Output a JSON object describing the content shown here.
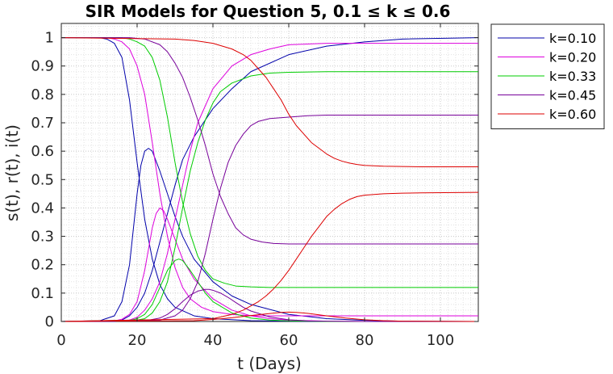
{
  "chart_data": {
    "type": "line",
    "title": "SIR Models for Question 5, 0.1 ≤ k ≤ 0.6",
    "xlabel": "t (Days)",
    "ylabel": "s(t), r(t), i(t)",
    "xlim": [
      0,
      110
    ],
    "ylim": [
      0,
      1.05
    ],
    "xticks": [
      0,
      20,
      40,
      60,
      80,
      100
    ],
    "yticks": [
      0,
      0.1,
      0.2,
      0.3,
      0.4,
      0.5,
      0.6,
      0.7,
      0.8,
      0.9,
      1
    ],
    "grid": "major and minor, dotted",
    "legend_placement": "outside-top-right",
    "series": [
      {
        "name": "k=0.10",
        "color": "#0000aa",
        "s": {
          "x": [
            0,
            10,
            12,
            14,
            16,
            18,
            20,
            22,
            24,
            26,
            28,
            30,
            35,
            40,
            50,
            60,
            70,
            80,
            90,
            110
          ],
          "y": [
            1,
            1,
            0.995,
            0.98,
            0.93,
            0.78,
            0.56,
            0.36,
            0.22,
            0.13,
            0.08,
            0.05,
            0.02,
            0.01,
            0.003,
            0.001,
            0,
            0,
            0,
            0
          ]
        },
        "i": {
          "x": [
            0,
            10,
            14,
            16,
            18,
            20,
            21,
            22,
            23,
            24,
            26,
            28,
            30,
            32,
            35,
            40,
            45,
            50,
            60,
            70,
            80,
            90,
            110
          ],
          "y": [
            0,
            0.002,
            0.02,
            0.07,
            0.2,
            0.45,
            0.55,
            0.6,
            0.61,
            0.6,
            0.53,
            0.45,
            0.37,
            0.3,
            0.22,
            0.14,
            0.09,
            0.06,
            0.025,
            0.01,
            0.004,
            0.001,
            0
          ]
        },
        "r": {
          "x": [
            0,
            14,
            16,
            18,
            20,
            22,
            24,
            26,
            28,
            30,
            32,
            35,
            40,
            45,
            50,
            60,
            70,
            80,
            90,
            110
          ],
          "y": [
            0,
            0,
            0.005,
            0.02,
            0.05,
            0.1,
            0.18,
            0.28,
            0.38,
            0.48,
            0.57,
            0.65,
            0.75,
            0.82,
            0.88,
            0.94,
            0.97,
            0.985,
            0.995,
            1
          ]
        }
      },
      {
        "name": "k=0.20",
        "color": "#dd00dd",
        "s": {
          "x": [
            0,
            12,
            14,
            16,
            18,
            20,
            22,
            24,
            26,
            28,
            30,
            32,
            34,
            37,
            40,
            45,
            50,
            60,
            80,
            110
          ],
          "y": [
            1,
            1,
            0.995,
            0.985,
            0.96,
            0.9,
            0.8,
            0.63,
            0.45,
            0.3,
            0.19,
            0.12,
            0.08,
            0.05,
            0.035,
            0.025,
            0.02,
            0.02,
            0.02,
            0.02
          ]
        },
        "i": {
          "x": [
            0,
            14,
            16,
            18,
            20,
            22,
            24,
            25,
            26,
            27,
            28,
            30,
            32,
            35,
            40,
            45,
            50,
            55,
            60,
            70,
            80,
            90,
            110
          ],
          "y": [
            0,
            0.002,
            0.008,
            0.025,
            0.07,
            0.18,
            0.33,
            0.38,
            0.4,
            0.39,
            0.36,
            0.29,
            0.22,
            0.15,
            0.08,
            0.04,
            0.02,
            0.01,
            0.005,
            0.001,
            0,
            0,
            0
          ]
        },
        "r": {
          "x": [
            0,
            18,
            20,
            22,
            24,
            26,
            28,
            30,
            32,
            34,
            36,
            40,
            45,
            50,
            55,
            60,
            70,
            80,
            110
          ],
          "y": [
            0,
            0.005,
            0.015,
            0.04,
            0.08,
            0.14,
            0.24,
            0.36,
            0.48,
            0.6,
            0.7,
            0.82,
            0.9,
            0.94,
            0.96,
            0.975,
            0.98,
            0.98,
            0.98
          ]
        }
      },
      {
        "name": "k=0.33",
        "color": "#00cc00",
        "s": {
          "x": [
            0,
            16,
            18,
            20,
            22,
            24,
            26,
            28,
            30,
            32,
            34,
            36,
            38,
            40,
            43,
            46,
            50,
            55,
            60,
            110
          ],
          "y": [
            1,
            1,
            0.995,
            0.985,
            0.97,
            0.93,
            0.85,
            0.72,
            0.56,
            0.42,
            0.31,
            0.23,
            0.18,
            0.15,
            0.135,
            0.125,
            0.122,
            0.12,
            0.12,
            0.12
          ]
        },
        "i": {
          "x": [
            0,
            18,
            20,
            22,
            24,
            26,
            28,
            30,
            31,
            32,
            34,
            36,
            38,
            40,
            45,
            50,
            55,
            60,
            65,
            70,
            110
          ],
          "y": [
            0,
            0.003,
            0.01,
            0.025,
            0.06,
            0.12,
            0.18,
            0.215,
            0.22,
            0.215,
            0.18,
            0.14,
            0.1,
            0.07,
            0.03,
            0.012,
            0.005,
            0.002,
            0.001,
            0,
            0
          ]
        },
        "r": {
          "x": [
            0,
            20,
            22,
            24,
            26,
            28,
            30,
            32,
            34,
            36,
            38,
            40,
            42,
            45,
            50,
            55,
            60,
            70,
            110
          ],
          "y": [
            0,
            0.005,
            0.01,
            0.03,
            0.07,
            0.14,
            0.26,
            0.4,
            0.53,
            0.63,
            0.71,
            0.77,
            0.81,
            0.84,
            0.865,
            0.875,
            0.878,
            0.88,
            0.88
          ]
        }
      },
      {
        "name": "k=0.45",
        "color": "#770099",
        "s": {
          "x": [
            0,
            18,
            22,
            26,
            28,
            30,
            32,
            34,
            36,
            38,
            40,
            42,
            44,
            46,
            48,
            50,
            53,
            56,
            60,
            70,
            110
          ],
          "y": [
            1,
            1,
            0.995,
            0.975,
            0.95,
            0.91,
            0.86,
            0.79,
            0.71,
            0.62,
            0.52,
            0.44,
            0.38,
            0.33,
            0.305,
            0.29,
            0.28,
            0.275,
            0.273,
            0.273,
            0.273
          ]
        },
        "i": {
          "x": [
            0,
            22,
            26,
            28,
            30,
            32,
            34,
            36,
            38,
            39,
            40,
            42,
            44,
            46,
            48,
            50,
            55,
            60,
            65,
            70,
            80,
            110
          ],
          "y": [
            0,
            0.002,
            0.012,
            0.025,
            0.045,
            0.07,
            0.093,
            0.107,
            0.113,
            0.113,
            0.11,
            0.1,
            0.085,
            0.067,
            0.05,
            0.037,
            0.016,
            0.006,
            0.002,
            0.001,
            0,
            0
          ]
        },
        "r": {
          "x": [
            0,
            26,
            30,
            32,
            34,
            36,
            38,
            40,
            42,
            44,
            46,
            48,
            50,
            52,
            55,
            60,
            65,
            70,
            110
          ],
          "y": [
            0,
            0.005,
            0.02,
            0.04,
            0.08,
            0.14,
            0.24,
            0.36,
            0.47,
            0.56,
            0.62,
            0.66,
            0.69,
            0.705,
            0.715,
            0.72,
            0.725,
            0.727,
            0.727
          ]
        }
      },
      {
        "name": "k=0.60",
        "color": "#dd0000",
        "s": {
          "x": [
            0,
            30,
            35,
            40,
            45,
            48,
            50,
            52,
            54,
            56,
            58,
            60,
            62,
            64,
            66,
            68,
            70,
            72,
            74,
            76,
            78,
            80,
            85,
            90,
            95,
            110
          ],
          "y": [
            1,
            0.995,
            0.99,
            0.98,
            0.96,
            0.94,
            0.92,
            0.89,
            0.86,
            0.82,
            0.78,
            0.73,
            0.69,
            0.66,
            0.63,
            0.61,
            0.59,
            0.575,
            0.565,
            0.558,
            0.553,
            0.55,
            0.547,
            0.546,
            0.545,
            0.545
          ]
        },
        "i": {
          "x": [
            0,
            35,
            40,
            45,
            50,
            55,
            58,
            60,
            62,
            64,
            66,
            70,
            75,
            80,
            85,
            90,
            110
          ],
          "y": [
            0,
            0.003,
            0.007,
            0.013,
            0.021,
            0.028,
            0.032,
            0.033,
            0.032,
            0.03,
            0.027,
            0.02,
            0.012,
            0.006,
            0.003,
            0.001,
            0
          ]
        },
        "r": {
          "x": [
            0,
            40,
            45,
            48,
            50,
            52,
            54,
            56,
            58,
            60,
            62,
            64,
            66,
            68,
            70,
            72,
            74,
            76,
            78,
            80,
            85,
            90,
            95,
            110
          ],
          "y": [
            0,
            0.01,
            0.025,
            0.04,
            0.055,
            0.07,
            0.09,
            0.115,
            0.145,
            0.18,
            0.22,
            0.26,
            0.3,
            0.335,
            0.37,
            0.395,
            0.415,
            0.43,
            0.44,
            0.445,
            0.45,
            0.452,
            0.453,
            0.455
          ]
        }
      }
    ]
  }
}
